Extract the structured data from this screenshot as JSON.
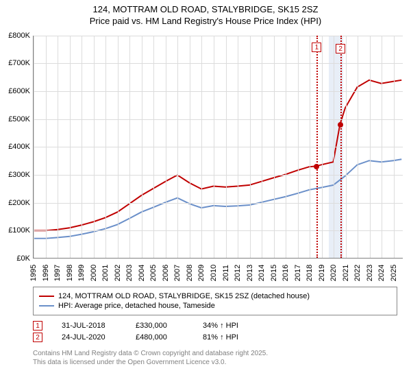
{
  "title": {
    "line1": "124, MOTTRAM OLD ROAD, STALYBRIDGE, SK15 2SZ",
    "line2": "Price paid vs. HM Land Registry's House Price Index (HPI)"
  },
  "chart": {
    "type": "line",
    "background_color": "#ffffff",
    "grid_color": "#dcdcdc",
    "axis_color": "#808080",
    "xlim": [
      1995,
      2025.8
    ],
    "ylim": [
      0,
      800000
    ],
    "ytick_step": 100000,
    "ytick_labels": [
      "£0K",
      "£100K",
      "£200K",
      "£300K",
      "£400K",
      "£500K",
      "£600K",
      "£700K",
      "£800K"
    ],
    "xticks": [
      1995,
      1996,
      1997,
      1998,
      1999,
      2000,
      2001,
      2002,
      2003,
      2004,
      2005,
      2006,
      2007,
      2008,
      2009,
      2010,
      2011,
      2012,
      2013,
      2014,
      2015,
      2016,
      2017,
      2018,
      2019,
      2020,
      2021,
      2022,
      2023,
      2024,
      2025
    ],
    "label_fontsize": 11,
    "shade_band": {
      "x_from": 2019.6,
      "x_to": 2020.8,
      "color": "#e8eef7"
    },
    "marker_lines": [
      {
        "x": 2018.58,
        "label": "1",
        "color": "#c00000",
        "dash": "dotted"
      },
      {
        "x": 2020.56,
        "label": "2",
        "color": "#c00000",
        "dash": "dotted"
      }
    ],
    "series": [
      {
        "name": "price_paid",
        "label": "124, MOTTRAM OLD ROAD, STALYBRIDGE, SK15 2SZ (detached house)",
        "color": "#c00000",
        "line_width": 2,
        "points": [
          [
            1995,
            98000
          ],
          [
            1996,
            98000
          ],
          [
            1997,
            102000
          ],
          [
            1998,
            108000
          ],
          [
            1999,
            118000
          ],
          [
            2000,
            130000
          ],
          [
            2001,
            145000
          ],
          [
            2002,
            165000
          ],
          [
            2003,
            195000
          ],
          [
            2004,
            225000
          ],
          [
            2005,
            250000
          ],
          [
            2006,
            275000
          ],
          [
            2007,
            298000
          ],
          [
            2008,
            270000
          ],
          [
            2009,
            248000
          ],
          [
            2010,
            258000
          ],
          [
            2011,
            255000
          ],
          [
            2012,
            258000
          ],
          [
            2013,
            262000
          ],
          [
            2014,
            275000
          ],
          [
            2015,
            288000
          ],
          [
            2016,
            300000
          ],
          [
            2017,
            315000
          ],
          [
            2018,
            328000
          ],
          [
            2018.58,
            330000
          ],
          [
            2019,
            335000
          ],
          [
            2020,
            345000
          ],
          [
            2020.56,
            480000
          ],
          [
            2021,
            540000
          ],
          [
            2022,
            615000
          ],
          [
            2023,
            640000
          ],
          [
            2024,
            628000
          ],
          [
            2025,
            635000
          ],
          [
            2025.7,
            640000
          ]
        ],
        "sale_dots": [
          {
            "x": 2018.58,
            "y": 330000
          },
          {
            "x": 2020.56,
            "y": 480000
          }
        ]
      },
      {
        "name": "hpi",
        "label": "HPI: Average price, detached house, Tameside",
        "color": "#6a8fc9",
        "line_width": 2,
        "points": [
          [
            1995,
            70000
          ],
          [
            1996,
            70000
          ],
          [
            1997,
            73000
          ],
          [
            1998,
            77000
          ],
          [
            1999,
            85000
          ],
          [
            2000,
            94000
          ],
          [
            2001,
            105000
          ],
          [
            2002,
            120000
          ],
          [
            2003,
            142000
          ],
          [
            2004,
            165000
          ],
          [
            2005,
            182000
          ],
          [
            2006,
            200000
          ],
          [
            2007,
            216000
          ],
          [
            2008,
            195000
          ],
          [
            2009,
            180000
          ],
          [
            2010,
            188000
          ],
          [
            2011,
            185000
          ],
          [
            2012,
            187000
          ],
          [
            2013,
            190000
          ],
          [
            2014,
            200000
          ],
          [
            2015,
            210000
          ],
          [
            2016,
            220000
          ],
          [
            2017,
            232000
          ],
          [
            2018,
            245000
          ],
          [
            2019,
            253000
          ],
          [
            2020,
            262000
          ],
          [
            2021,
            295000
          ],
          [
            2022,
            335000
          ],
          [
            2023,
            350000
          ],
          [
            2024,
            345000
          ],
          [
            2025,
            350000
          ],
          [
            2025.7,
            355000
          ]
        ]
      }
    ]
  },
  "legend": {
    "items": [
      {
        "color": "#c00000",
        "label": "124, MOTTRAM OLD ROAD, STALYBRIDGE, SK15 2SZ (detached house)"
      },
      {
        "color": "#6a8fc9",
        "label": "HPI: Average price, detached house, Tameside"
      }
    ]
  },
  "sales": [
    {
      "num": "1",
      "date": "31-JUL-2018",
      "price": "£330,000",
      "diff": "34% ↑ HPI"
    },
    {
      "num": "2",
      "date": "24-JUL-2020",
      "price": "£480,000",
      "diff": "81% ↑ HPI"
    }
  ],
  "footnote": {
    "line1": "Contains HM Land Registry data © Crown copyright and database right 2025.",
    "line2": "This data is licensed under the Open Government Licence v3.0."
  }
}
